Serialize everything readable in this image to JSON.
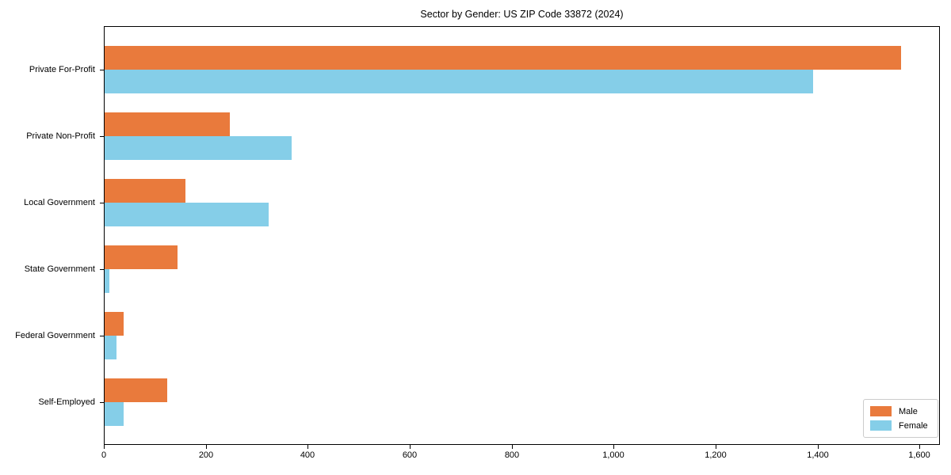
{
  "title": "Sector by Gender: US ZIP Code 33872 (2024)",
  "colors": {
    "male": "#E97A3C",
    "female": "#85CEE8",
    "axis": "#000000",
    "legend_border": "#CCCCCC",
    "background": "#FFFFFF"
  },
  "chart_data": {
    "type": "bar",
    "orientation": "horizontal",
    "title": "Sector by Gender: US ZIP Code 33872 (2024)",
    "xlabel": "",
    "ylabel": "",
    "grid": false,
    "categories": [
      "Private For-Profit",
      "Private Non-Profit",
      "Local Government",
      "State Government",
      "Federal Government",
      "Self-Employed"
    ],
    "series": [
      {
        "name": "Male",
        "color": "#E97A3C",
        "values": [
          1562,
          246,
          159,
          143,
          37,
          123
        ]
      },
      {
        "name": "Female",
        "color": "#85CEE8",
        "values": [
          1390,
          367,
          322,
          9,
          23,
          38
        ]
      }
    ],
    "xlim": [
      0,
      1640
    ],
    "x_ticks": [
      0,
      200,
      400,
      600,
      800,
      1000,
      1200,
      1400,
      1600
    ],
    "x_tick_labels": [
      "0",
      "200",
      "400",
      "600",
      "800",
      "1,000",
      "1,200",
      "1,400",
      "1,600"
    ],
    "legend": {
      "position": "lower right",
      "entries": [
        "Male",
        "Female"
      ]
    }
  }
}
